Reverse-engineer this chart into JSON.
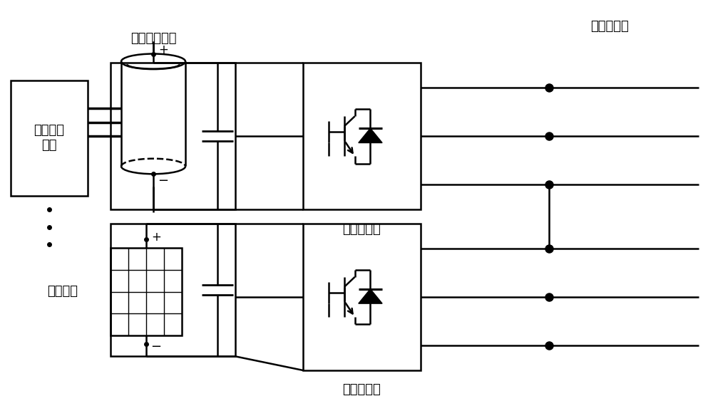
{
  "bg_color": "#ffffff",
  "line_color": "#000000",
  "labels": {
    "battery_mgmt": "电池管理\n系统",
    "battery_storage": "电池储能系统",
    "storage_converter": "储能变流器",
    "pv_array": "光伏阵列",
    "pv_converter": "光伏变流器",
    "power_line": "功率联络线"
  },
  "figsize": [
    10.0,
    5.56
  ],
  "dpi": 100
}
